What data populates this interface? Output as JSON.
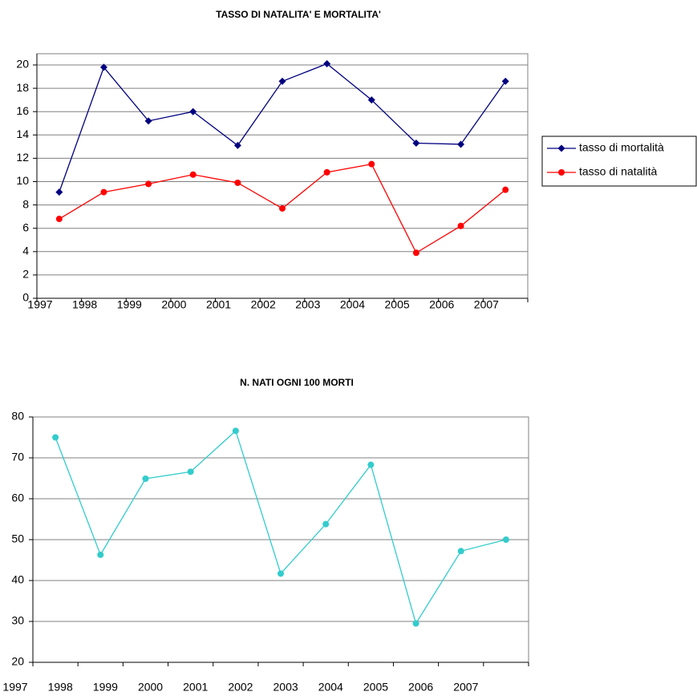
{
  "chart_data": [
    {
      "type": "line",
      "title": "TASSO DI NATALITA' E MORTALITA'",
      "categories": [
        "1997",
        "1998",
        "1999",
        "2000",
        "2001",
        "2002",
        "2003",
        "2004",
        "2005",
        "2006",
        "2007"
      ],
      "series": [
        {
          "name": "tasso di mortalità",
          "color": "#000080",
          "marker": "diamond",
          "values": [
            9.1,
            19.8,
            15.2,
            16.0,
            13.1,
            18.6,
            20.1,
            17.0,
            13.3,
            13.2,
            18.6
          ]
        },
        {
          "name": "tasso di natalità",
          "color": "#ff0000",
          "marker": "circle",
          "values": [
            6.8,
            9.1,
            9.8,
            10.6,
            9.9,
            7.7,
            10.8,
            11.5,
            3.9,
            6.2,
            9.3
          ]
        }
      ],
      "ylim": [
        0,
        20
      ],
      "yticks": [
        0,
        2,
        4,
        6,
        8,
        10,
        12,
        14,
        16,
        18,
        20
      ],
      "grid": true,
      "legend": "right"
    },
    {
      "type": "line",
      "title": "N. NATI OGNI 100 MORTI",
      "categories": [
        "1997",
        "1998",
        "1999",
        "2000",
        "2001",
        "2002",
        "2003",
        "2004",
        "2005",
        "2006",
        "2007"
      ],
      "series": [
        {
          "color": "#33cccc",
          "marker": "circle",
          "values": [
            75.0,
            46.3,
            64.9,
            66.6,
            76.6,
            41.7,
            53.8,
            68.3,
            29.5,
            47.2,
            50.0
          ]
        }
      ],
      "ylim": [
        20,
        80
      ],
      "yticks": [
        20,
        30,
        40,
        50,
        60,
        70,
        80
      ],
      "grid": true
    }
  ]
}
